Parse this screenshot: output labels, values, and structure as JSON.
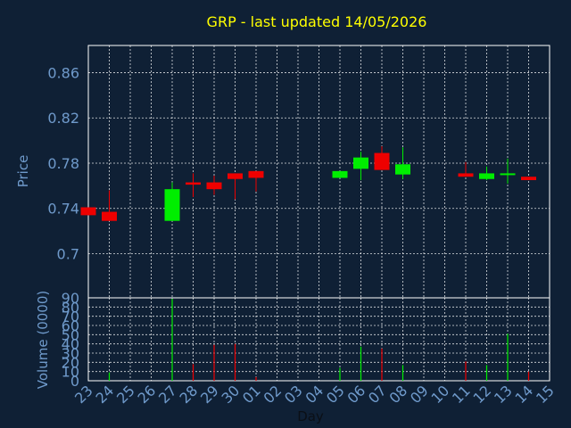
{
  "chart_data": {
    "type": "candlestick",
    "title": "GRP - last updated 14/05/2026",
    "xlabel": "Day",
    "ylabel_price": "Price",
    "ylabel_volume": "Volume (0000)",
    "price_ticks": [
      "0.7",
      "0.74",
      "0.78",
      "0.82",
      "0.86"
    ],
    "price_tick_values": [
      0.7,
      0.74,
      0.78,
      0.82,
      0.86
    ],
    "price_ylim": [
      0.661,
      0.884
    ],
    "volume_ticks": [
      "0",
      "10",
      "20",
      "30",
      "40",
      "50",
      "60",
      "70",
      "80",
      "90"
    ],
    "volume_ylim": [
      0,
      90
    ],
    "grid": true,
    "x_labels": [
      "23",
      "24",
      "25",
      "26",
      "27",
      "28",
      "29",
      "30",
      "01",
      "02",
      "03",
      "04",
      "05",
      "06",
      "07",
      "08",
      "09",
      "10",
      "11",
      "12",
      "13",
      "14",
      "15"
    ],
    "candles": [
      {
        "day": "23",
        "open": 0.741,
        "high": 0.741,
        "low": 0.734,
        "close": 0.734
      },
      {
        "day": "24",
        "open": 0.737,
        "high": 0.756,
        "low": 0.729,
        "close": 0.729
      },
      {
        "day": "27",
        "open": 0.729,
        "high": 0.763,
        "low": 0.729,
        "close": 0.757
      },
      {
        "day": "28",
        "open": 0.763,
        "high": 0.771,
        "low": 0.75,
        "close": 0.761
      },
      {
        "day": "29",
        "open": 0.763,
        "high": 0.769,
        "low": 0.752,
        "close": 0.757
      },
      {
        "day": "30",
        "open": 0.771,
        "high": 0.771,
        "low": 0.748,
        "close": 0.766
      },
      {
        "day": "01",
        "open": 0.773,
        "high": 0.773,
        "low": 0.755,
        "close": 0.767
      },
      {
        "day": "05",
        "open": 0.767,
        "high": 0.773,
        "low": 0.767,
        "close": 0.773
      },
      {
        "day": "06",
        "open": 0.775,
        "high": 0.79,
        "low": 0.765,
        "close": 0.785
      },
      {
        "day": "07",
        "open": 0.789,
        "high": 0.795,
        "low": 0.774,
        "close": 0.774
      },
      {
        "day": "08",
        "open": 0.77,
        "high": 0.794,
        "low": 0.766,
        "close": 0.779
      },
      {
        "day": "11",
        "open": 0.771,
        "high": 0.781,
        "low": 0.768,
        "close": 0.768
      },
      {
        "day": "12",
        "open": 0.766,
        "high": 0.777,
        "low": 0.765,
        "close": 0.771
      },
      {
        "day": "13",
        "open": 0.77,
        "high": 0.784,
        "low": 0.762,
        "close": 0.771
      },
      {
        "day": "14",
        "open": 0.768,
        "high": 0.768,
        "low": 0.765,
        "close": 0.765
      }
    ],
    "volumes": [
      {
        "day": "24",
        "value": 9,
        "color": "up"
      },
      {
        "day": "27",
        "value": 89,
        "color": "up"
      },
      {
        "day": "28",
        "value": 18,
        "color": "down"
      },
      {
        "day": "29",
        "value": 39,
        "color": "down"
      },
      {
        "day": "30",
        "value": 40,
        "color": "down"
      },
      {
        "day": "01",
        "value": 4,
        "color": "down"
      },
      {
        "day": "05",
        "value": 14,
        "color": "up"
      },
      {
        "day": "06",
        "value": 37,
        "color": "up"
      },
      {
        "day": "07",
        "value": 35,
        "color": "down"
      },
      {
        "day": "08",
        "value": 17,
        "color": "up"
      },
      {
        "day": "11",
        "value": 21,
        "color": "down"
      },
      {
        "day": "12",
        "value": 17,
        "color": "up"
      },
      {
        "day": "13",
        "value": 51,
        "color": "up"
      },
      {
        "day": "14",
        "value": 10,
        "color": "down"
      }
    ],
    "colors": {
      "background": "#0f2035",
      "up": "#00ee00",
      "down": "#ee0000",
      "title": "#ffff00",
      "axis_text": "#6f9acb",
      "frame": "#ffffff",
      "grid": "#ffffff"
    }
  }
}
